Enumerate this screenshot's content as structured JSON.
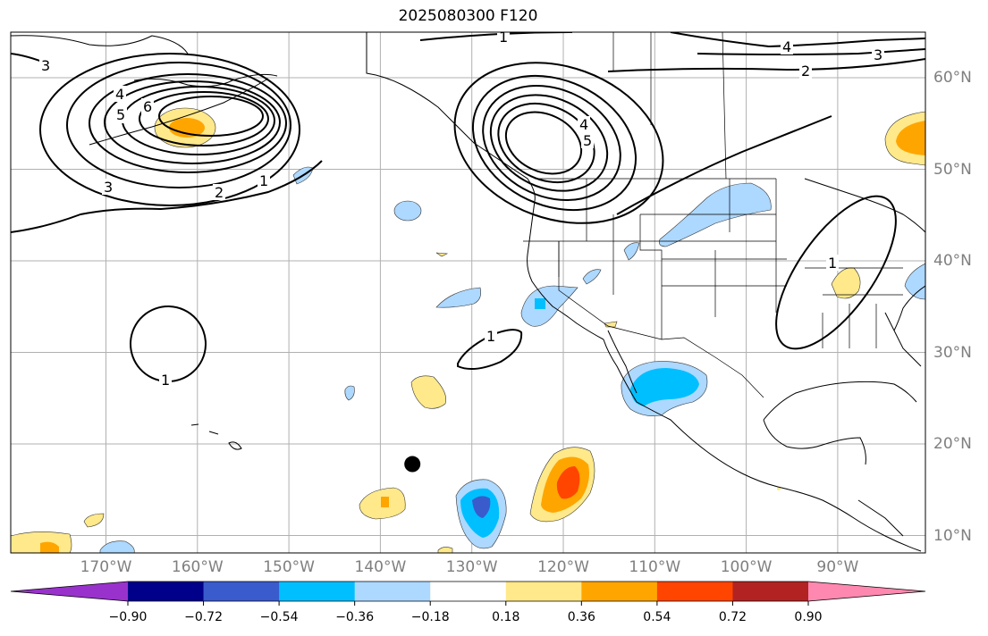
{
  "title": "2025080300 F120",
  "map": {
    "lon_labels": [
      {
        "text": "170°W",
        "lon": -170
      },
      {
        "text": "160°W",
        "lon": -160
      },
      {
        "text": "150°W",
        "lon": -150
      },
      {
        "text": "140°W",
        "lon": -140
      },
      {
        "text": "130°W",
        "lon": -130
      },
      {
        "text": "120°W",
        "lon": -120
      },
      {
        "text": "110°W",
        "lon": -110
      },
      {
        "text": "100°W",
        "lon": -100
      },
      {
        "text": "90°W",
        "lon": -90
      }
    ],
    "lat_labels": [
      {
        "text": "60°N",
        "lat": 60
      },
      {
        "text": "50°N",
        "lat": 50
      },
      {
        "text": "40°N",
        "lat": 40
      },
      {
        "text": "30°N",
        "lat": 30
      },
      {
        "text": "20°N",
        "lat": 20
      },
      {
        "text": "10°N",
        "lat": 10
      }
    ],
    "contour_labels": [
      "1",
      "2",
      "3",
      "4",
      "5",
      "6"
    ],
    "marker": {
      "lon": -136.5,
      "lat": 17.8,
      "color": "#000000"
    }
  },
  "colorbar": {
    "colors": [
      "#9932cc",
      "#00008b",
      "#3a5bcc",
      "#00bfff",
      "#add8ff",
      "#ffffff",
      "#ffe98a",
      "#ffa500",
      "#ff4500",
      "#b22222",
      "#ff88b0"
    ],
    "tick_labels": [
      "−0.90",
      "−0.72",
      "−0.54",
      "−0.36",
      "−0.18",
      "0.18",
      "0.36",
      "0.54",
      "0.72",
      "0.90"
    ]
  }
}
